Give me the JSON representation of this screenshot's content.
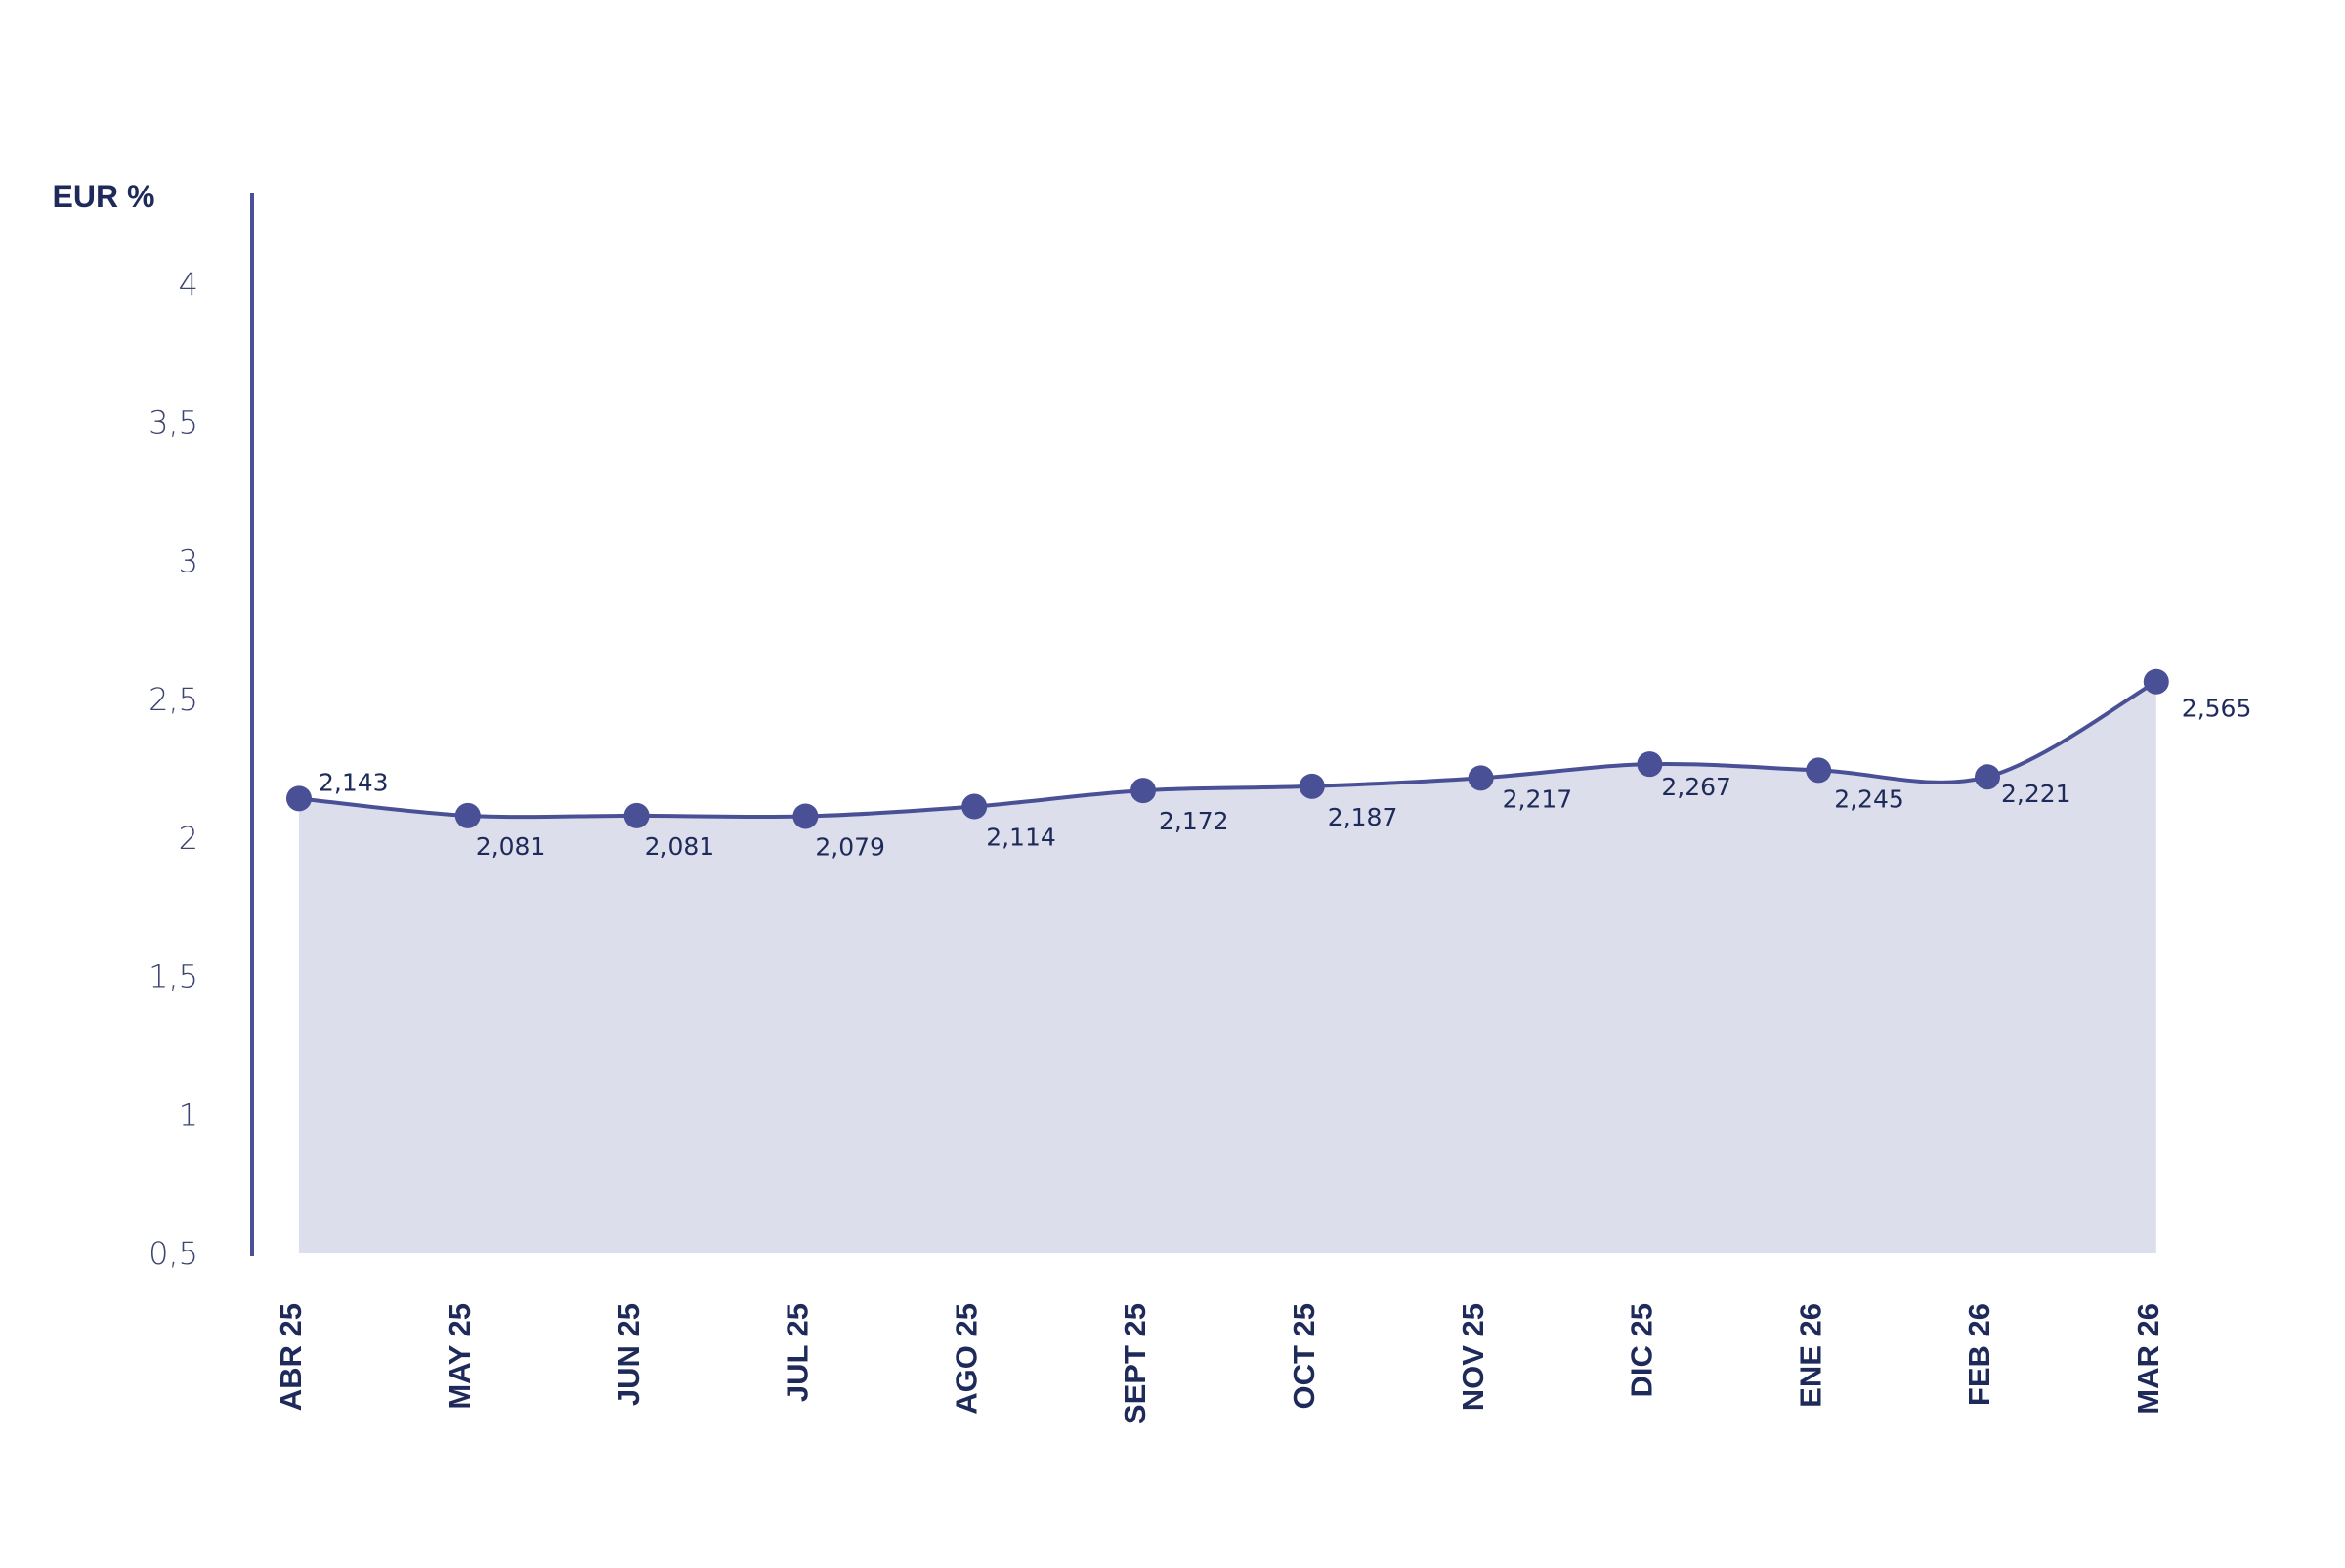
{
  "chart_data": {
    "type": "area",
    "title": "",
    "ylabel": "EUR %",
    "xlabel": "",
    "ylim": [
      0.5,
      4
    ],
    "yticks": [
      {
        "value": 0.5,
        "label": "0,5"
      },
      {
        "value": 1,
        "label": "1"
      },
      {
        "value": 1.5,
        "label": "1,5"
      },
      {
        "value": 2,
        "label": "2"
      },
      {
        "value": 2.5,
        "label": "2,5"
      },
      {
        "value": 3,
        "label": "3"
      },
      {
        "value": 3.5,
        "label": "3,5"
      },
      {
        "value": 4,
        "label": "4"
      }
    ],
    "categories": [
      "ABR 25",
      "MAY 25",
      "JUN 25",
      "JUL 25",
      "AGO 25",
      "SEPT 25",
      "OCT 25",
      "NOV 25",
      "DIC 25",
      "ENE 26",
      "FEB 26",
      "MAR 26"
    ],
    "values": [
      2.143,
      2.081,
      2.081,
      2.079,
      2.114,
      2.172,
      2.187,
      2.217,
      2.267,
      2.245,
      2.221,
      2.565
    ],
    "data_labels": [
      "2,143",
      "2,081",
      "2,081",
      "2,079",
      "2,114",
      "2,172",
      "2,187",
      "2,217",
      "2,267",
      "2,245",
      "2,221",
      "2,565"
    ],
    "grid": false,
    "legend": "none",
    "colors": {
      "line": "#4a5096",
      "fill": "#dcdeeb",
      "text": "#1e2a5a",
      "tick_text": "#3c4470"
    }
  }
}
